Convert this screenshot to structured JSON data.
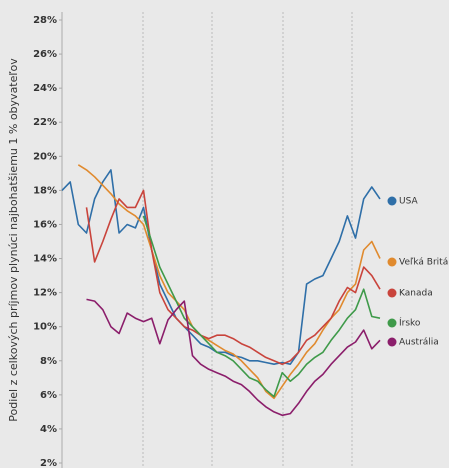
{
  "chart_data": {
    "type": "line",
    "y_label": "Podiel z celkových príjmov plynúci najbohatšiemu 1 % obyvateľov",
    "categories": [
      null,
      null,
      null,
      null,
      null,
      null,
      null,
      null,
      null,
      null,
      null,
      null,
      null,
      null,
      null,
      null,
      null,
      null,
      null,
      null,
      null,
      null,
      null,
      null,
      null,
      null,
      null,
      null,
      null,
      null,
      null,
      null,
      null,
      null,
      null,
      null,
      null,
      null,
      null,
      null
    ],
    "ylim": [
      2,
      28
    ],
    "yticks": [
      {
        "value": 2,
        "label": "2%"
      },
      {
        "value": 4,
        "label": "4%"
      },
      {
        "value": 6,
        "label": "6%"
      },
      {
        "value": 8,
        "label": "8%"
      },
      {
        "value": 10,
        "label": "10%"
      },
      {
        "value": 12,
        "label": "12%"
      },
      {
        "value": 14,
        "label": "14%"
      },
      {
        "value": 16,
        "label": "16%"
      },
      {
        "value": 18,
        "label": "18%"
      },
      {
        "value": 20,
        "label": "20%"
      },
      {
        "value": 22,
        "label": "22%"
      },
      {
        "value": 24,
        "label": "24%"
      },
      {
        "value": 26,
        "label": "26%"
      },
      {
        "value": 28,
        "label": "28%"
      }
    ],
    "series": [
      {
        "name": "USA",
        "color": "#2f6fa8",
        "values": [
          18,
          18.5,
          16,
          15.5,
          17.5,
          18.5,
          19.2,
          15.5,
          16,
          15.8,
          17,
          14.5,
          12.5,
          11.5,
          10.5,
          10,
          9.5,
          9,
          8.8,
          8.5,
          8.5,
          8.3,
          8.2,
          8,
          8,
          7.9,
          7.8,
          7.9,
          7.8,
          8.5,
          12.5,
          12.8,
          13,
          14,
          15,
          16.5,
          15.2,
          17.5,
          18.2,
          17.5
        ]
      },
      {
        "name": "Veľká Británia",
        "color": "#e08a2e",
        "values": [
          null,
          null,
          19.5,
          19.2,
          18.8,
          18.3,
          17.8,
          17.2,
          16.8,
          16.5,
          16,
          14.5,
          13,
          12,
          11.5,
          11,
          10,
          9.5,
          9.2,
          8.9,
          8.6,
          8.4,
          8,
          7.5,
          7,
          6.2,
          5.8,
          6.5,
          7.2,
          7.8,
          8.5,
          9,
          9.8,
          10.5,
          11,
          12,
          12.5,
          14.5,
          15,
          14
        ]
      },
      {
        "name": "Kanada",
        "color": "#c9443c",
        "values": [
          null,
          null,
          null,
          17,
          13.8,
          15,
          16.3,
          17.5,
          17,
          17,
          18,
          14.5,
          12,
          11,
          10.5,
          10,
          9.8,
          9.5,
          9.3,
          9.5,
          9.5,
          9.3,
          9,
          8.8,
          8.5,
          8.2,
          8,
          7.8,
          8,
          8.5,
          9.2,
          9.5,
          10,
          10.5,
          11.5,
          12.3,
          12,
          13.5,
          13,
          12.2
        ]
      },
      {
        "name": "Írsko",
        "color": "#3f9a4a",
        "values": [
          null,
          null,
          null,
          null,
          null,
          null,
          null,
          null,
          null,
          null,
          16.5,
          15,
          13.5,
          12.5,
          11.5,
          10.5,
          10,
          9.5,
          9,
          8.5,
          8.3,
          8,
          7.5,
          7,
          6.8,
          6.3,
          5.9,
          7.3,
          6.8,
          7.2,
          7.8,
          8.2,
          8.5,
          9.2,
          9.8,
          10.5,
          11,
          12.2,
          10.6,
          10.5
        ]
      },
      {
        "name": "Austrália",
        "color": "#8b1e6b",
        "values": [
          null,
          null,
          null,
          11.6,
          11.5,
          11,
          10,
          9.6,
          10.8,
          10.5,
          10.3,
          10.5,
          9,
          10.4,
          11,
          11.5,
          8.3,
          7.8,
          7.5,
          7.3,
          7.1,
          6.8,
          6.6,
          6.2,
          5.7,
          5.3,
          5,
          4.8,
          4.9,
          5.5,
          6.2,
          6.8,
          7.2,
          7.8,
          8.3,
          8.8,
          9.1,
          9.8,
          8.7,
          9.2
        ]
      }
    ]
  }
}
